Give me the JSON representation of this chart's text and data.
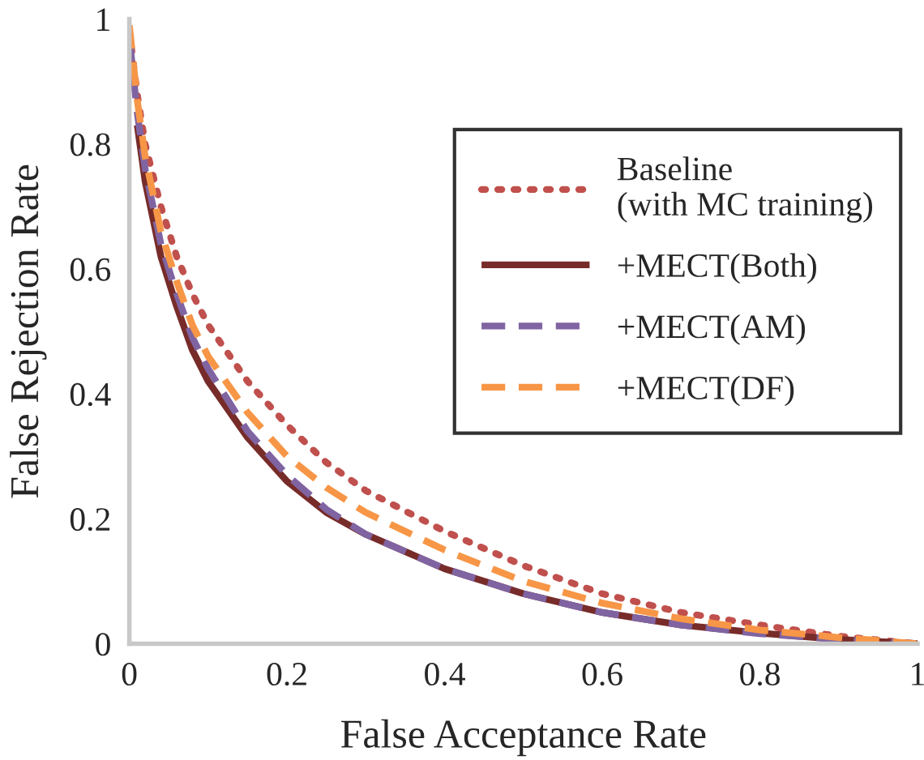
{
  "chart_data": {
    "type": "line",
    "xlabel": "False Acceptance Rate",
    "ylabel": "False Rejection Rate",
    "xlim": [
      0,
      1
    ],
    "ylim": [
      0,
      1
    ],
    "xticks": [
      0,
      0.2,
      0.4,
      0.6,
      0.8,
      1
    ],
    "yticks": [
      0,
      0.2,
      0.4,
      0.6,
      0.8,
      1
    ],
    "grid": false,
    "legend": "top right",
    "marker": "none",
    "x": [
      0,
      0.01,
      0.02,
      0.04,
      0.06,
      0.08,
      0.1,
      0.15,
      0.2,
      0.25,
      0.3,
      0.4,
      0.5,
      0.6,
      0.7,
      0.8,
      0.9,
      1
    ],
    "series": [
      {
        "name": "Baseline\n(with MC training)",
        "color": "#c0504d",
        "line_style": "dotted",
        "values": [
          0.98,
          0.88,
          0.8,
          0.7,
          0.62,
          0.56,
          0.51,
          0.42,
          0.35,
          0.29,
          0.245,
          0.18,
          0.125,
          0.08,
          0.05,
          0.03,
          0.012,
          0
        ]
      },
      {
        "name": "+MECT(Both)",
        "color": "#772c2a",
        "line_style": "solid",
        "values": [
          null,
          0.83,
          0.74,
          0.62,
          0.54,
          0.47,
          0.42,
          0.33,
          0.26,
          0.21,
          0.175,
          0.12,
          0.08,
          0.05,
          0.03,
          0.017,
          0.007,
          0
        ]
      },
      {
        "name": "+MECT(AM)",
        "color": "#8064a2",
        "line_style": "dashed",
        "values": [
          0.97,
          0.85,
          0.76,
          0.64,
          0.56,
          0.49,
          0.44,
          0.34,
          0.27,
          0.215,
          0.175,
          0.12,
          0.08,
          0.05,
          0.03,
          0.016,
          0.007,
          0
        ]
      },
      {
        "name": "+MECT(DF)",
        "color": "#f79646",
        "line_style": "dashed",
        "values": [
          0.99,
          0.87,
          0.78,
          0.66,
          0.58,
          0.51,
          0.46,
          0.37,
          0.3,
          0.25,
          0.21,
          0.15,
          0.1,
          0.065,
          0.04,
          0.022,
          0.01,
          0
        ]
      }
    ]
  }
}
